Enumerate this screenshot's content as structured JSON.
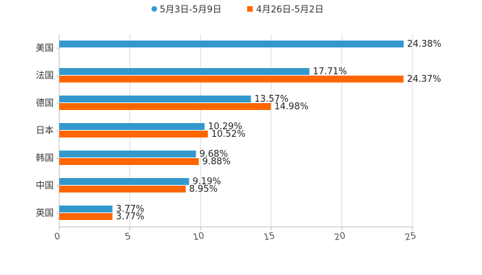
{
  "chart_data": {
    "type": "bar",
    "orientation": "horizontal",
    "categories": [
      "美国",
      "法国",
      "德国",
      "日本",
      "韩国",
      "中国",
      "英国"
    ],
    "series": [
      {
        "name": "5月3日-5月9日",
        "color": "#3399cc",
        "values": [
          24.38,
          17.71,
          13.57,
          10.29,
          9.68,
          9.19,
          3.77
        ],
        "labels": [
          "24.38%",
          "17.71%",
          "13.57%",
          "10.29%",
          "9.68%",
          "9.19%",
          "3.77%"
        ]
      },
      {
        "name": "4月26日-5月2日",
        "color": "#ff6600",
        "values": [
          null,
          24.37,
          14.98,
          10.52,
          9.88,
          8.95,
          3.77
        ],
        "labels": [
          null,
          "24.37%",
          "14.98%",
          "10.52%",
          "9.88%",
          "8.95%",
          "3.77%"
        ]
      }
    ],
    "xlim": [
      0,
      25
    ],
    "xticks": [
      0,
      5,
      10,
      15,
      20,
      25
    ],
    "xtick_labels": [
      "0",
      "5",
      "10",
      "15",
      "20",
      "25"
    ],
    "grid": true,
    "legend_position": "top-center",
    "title": "",
    "xlabel": "",
    "ylabel": ""
  }
}
